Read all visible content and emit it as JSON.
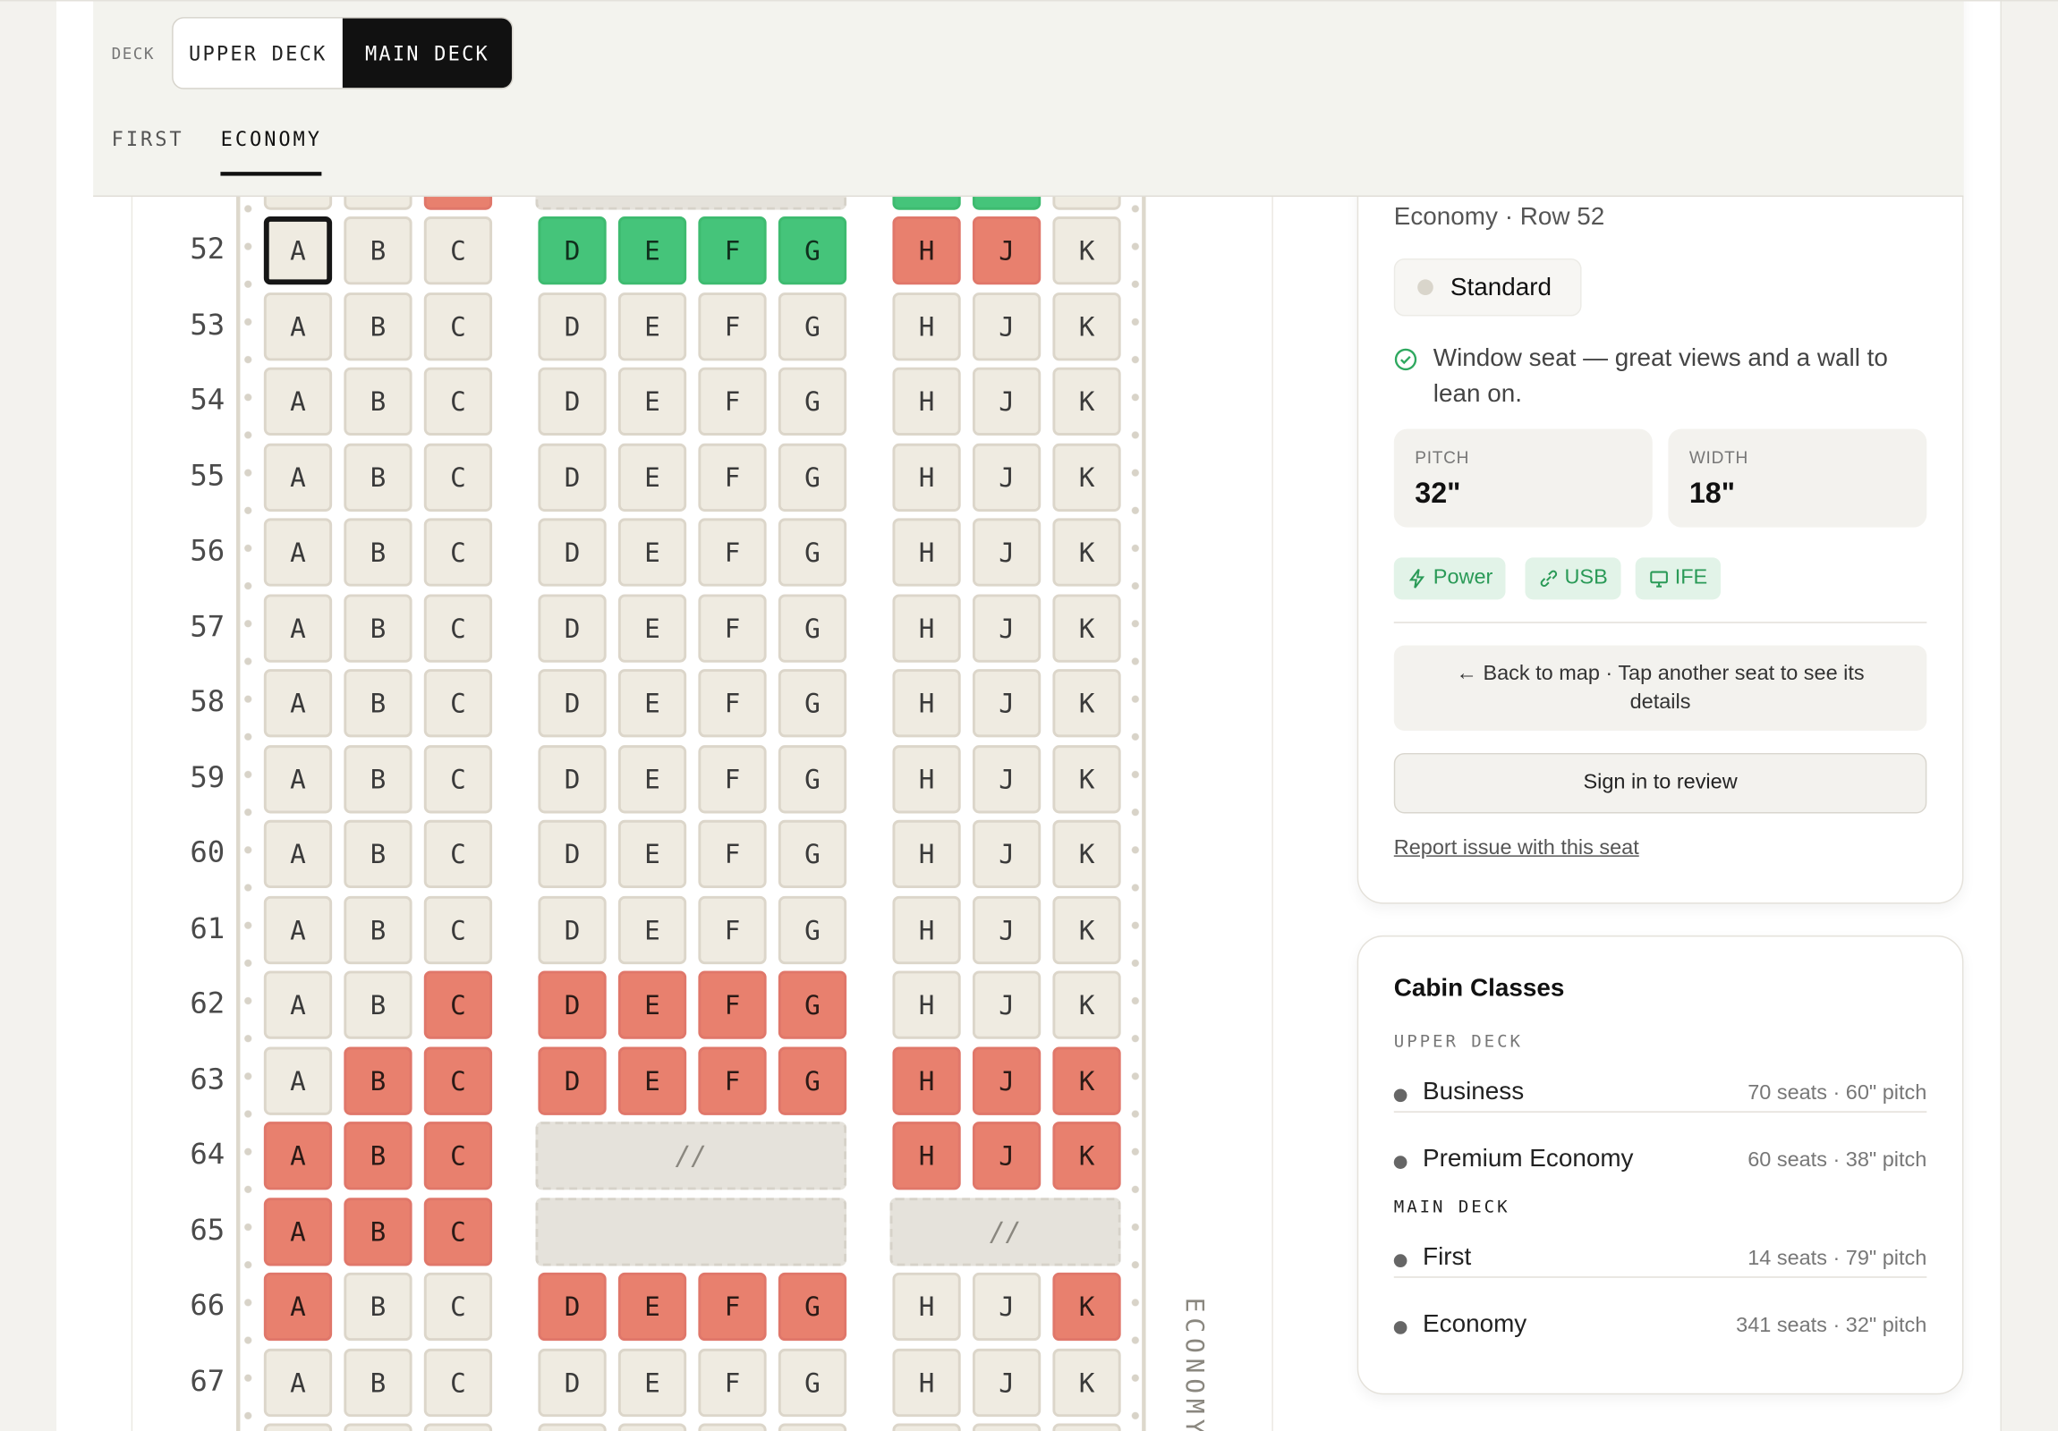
{
  "header": {
    "deck_label": "DECK",
    "deck_tabs": [
      {
        "label": "UPPER DECK",
        "selected": false
      },
      {
        "label": "MAIN DECK",
        "selected": true
      }
    ],
    "class_tabs": [
      {
        "label": "FIRST",
        "selected": false
      },
      {
        "label": "ECONOMY",
        "selected": true
      }
    ]
  },
  "seat_map": {
    "cabin_label": "ECONOMY",
    "rows": [
      {
        "row": null,
        "groups": [
          {
            "status": [
              "standard",
              "standard",
              "occupied"
            ]
          },
          {
            "blocked": true
          },
          {
            "status": [
              "featured",
              "featured",
              "standard"
            ]
          }
        ]
      },
      {
        "row": "52",
        "groups": [
          {
            "letters": [
              "A",
              "B",
              "C"
            ],
            "status": [
              "selected",
              "standard",
              "standard"
            ]
          },
          {
            "letters": [
              "D",
              "E",
              "F",
              "G"
            ],
            "status": [
              "featured",
              "featured",
              "featured",
              "featured"
            ]
          },
          {
            "letters": [
              "H",
              "J",
              "K"
            ],
            "status": [
              "occupied",
              "occupied",
              "standard"
            ]
          }
        ]
      },
      {
        "row": "53",
        "groups": [
          {
            "letters": [
              "A",
              "B",
              "C"
            ],
            "status": [
              "standard",
              "standard",
              "standard"
            ]
          },
          {
            "letters": [
              "D",
              "E",
              "F",
              "G"
            ],
            "status": [
              "standard",
              "standard",
              "standard",
              "standard"
            ]
          },
          {
            "letters": [
              "H",
              "J",
              "K"
            ],
            "status": [
              "standard",
              "standard",
              "standard"
            ]
          }
        ]
      },
      {
        "row": "54",
        "groups": [
          {
            "letters": [
              "A",
              "B",
              "C"
            ],
            "status": [
              "standard",
              "standard",
              "standard"
            ]
          },
          {
            "letters": [
              "D",
              "E",
              "F",
              "G"
            ],
            "status": [
              "standard",
              "standard",
              "standard",
              "standard"
            ]
          },
          {
            "letters": [
              "H",
              "J",
              "K"
            ],
            "status": [
              "standard",
              "standard",
              "standard"
            ]
          }
        ]
      },
      {
        "row": "55",
        "groups": [
          {
            "letters": [
              "A",
              "B",
              "C"
            ],
            "status": [
              "standard",
              "standard",
              "standard"
            ]
          },
          {
            "letters": [
              "D",
              "E",
              "F",
              "G"
            ],
            "status": [
              "standard",
              "standard",
              "standard",
              "standard"
            ]
          },
          {
            "letters": [
              "H",
              "J",
              "K"
            ],
            "status": [
              "standard",
              "standard",
              "standard"
            ]
          }
        ]
      },
      {
        "row": "56",
        "groups": [
          {
            "letters": [
              "A",
              "B",
              "C"
            ],
            "status": [
              "standard",
              "standard",
              "standard"
            ]
          },
          {
            "letters": [
              "D",
              "E",
              "F",
              "G"
            ],
            "status": [
              "standard",
              "standard",
              "standard",
              "standard"
            ]
          },
          {
            "letters": [
              "H",
              "J",
              "K"
            ],
            "status": [
              "standard",
              "standard",
              "standard"
            ]
          }
        ]
      },
      {
        "row": "57",
        "groups": [
          {
            "letters": [
              "A",
              "B",
              "C"
            ],
            "status": [
              "standard",
              "standard",
              "standard"
            ]
          },
          {
            "letters": [
              "D",
              "E",
              "F",
              "G"
            ],
            "status": [
              "standard",
              "standard",
              "standard",
              "standard"
            ]
          },
          {
            "letters": [
              "H",
              "J",
              "K"
            ],
            "status": [
              "standard",
              "standard",
              "standard"
            ]
          }
        ]
      },
      {
        "row": "58",
        "groups": [
          {
            "letters": [
              "A",
              "B",
              "C"
            ],
            "status": [
              "standard",
              "standard",
              "standard"
            ]
          },
          {
            "letters": [
              "D",
              "E",
              "F",
              "G"
            ],
            "status": [
              "standard",
              "standard",
              "standard",
              "standard"
            ]
          },
          {
            "letters": [
              "H",
              "J",
              "K"
            ],
            "status": [
              "standard",
              "standard",
              "standard"
            ]
          }
        ]
      },
      {
        "row": "59",
        "groups": [
          {
            "letters": [
              "A",
              "B",
              "C"
            ],
            "status": [
              "standard",
              "standard",
              "standard"
            ]
          },
          {
            "letters": [
              "D",
              "E",
              "F",
              "G"
            ],
            "status": [
              "standard",
              "standard",
              "standard",
              "standard"
            ]
          },
          {
            "letters": [
              "H",
              "J",
              "K"
            ],
            "status": [
              "standard",
              "standard",
              "standard"
            ]
          }
        ]
      },
      {
        "row": "60",
        "groups": [
          {
            "letters": [
              "A",
              "B",
              "C"
            ],
            "status": [
              "standard",
              "standard",
              "standard"
            ]
          },
          {
            "letters": [
              "D",
              "E",
              "F",
              "G"
            ],
            "status": [
              "standard",
              "standard",
              "standard",
              "standard"
            ]
          },
          {
            "letters": [
              "H",
              "J",
              "K"
            ],
            "status": [
              "standard",
              "standard",
              "standard"
            ]
          }
        ]
      },
      {
        "row": "61",
        "groups": [
          {
            "letters": [
              "A",
              "B",
              "C"
            ],
            "status": [
              "standard",
              "standard",
              "standard"
            ]
          },
          {
            "letters": [
              "D",
              "E",
              "F",
              "G"
            ],
            "status": [
              "standard",
              "standard",
              "standard",
              "standard"
            ]
          },
          {
            "letters": [
              "H",
              "J",
              "K"
            ],
            "status": [
              "standard",
              "standard",
              "standard"
            ]
          }
        ]
      },
      {
        "row": "62",
        "groups": [
          {
            "letters": [
              "A",
              "B",
              "C"
            ],
            "status": [
              "standard",
              "standard",
              "occupied"
            ]
          },
          {
            "letters": [
              "D",
              "E",
              "F",
              "G"
            ],
            "status": [
              "occupied",
              "occupied",
              "occupied",
              "occupied"
            ]
          },
          {
            "letters": [
              "H",
              "J",
              "K"
            ],
            "status": [
              "standard",
              "standard",
              "standard"
            ]
          }
        ]
      },
      {
        "row": "63",
        "groups": [
          {
            "letters": [
              "A",
              "B",
              "C"
            ],
            "status": [
              "standard",
              "occupied",
              "occupied"
            ]
          },
          {
            "letters": [
              "D",
              "E",
              "F",
              "G"
            ],
            "status": [
              "occupied",
              "occupied",
              "occupied",
              "occupied"
            ]
          },
          {
            "letters": [
              "H",
              "J",
              "K"
            ],
            "status": [
              "occupied",
              "occupied",
              "occupied"
            ]
          }
        ]
      },
      {
        "row": "64",
        "groups": [
          {
            "letters": [
              "A",
              "B",
              "C"
            ],
            "status": [
              "occupied",
              "occupied",
              "occupied"
            ]
          },
          {
            "blocked": true,
            "label": "//"
          },
          {
            "letters": [
              "H",
              "J",
              "K"
            ],
            "status": [
              "occupied",
              "occupied",
              "occupied"
            ]
          }
        ]
      },
      {
        "row": "65",
        "groups": [
          {
            "letters": [
              "A",
              "B",
              "C"
            ],
            "status": [
              "occupied",
              "occupied",
              "occupied"
            ]
          },
          {
            "blocked": true
          },
          {
            "blocked": true,
            "label": "//"
          }
        ]
      },
      {
        "row": "66",
        "groups": [
          {
            "letters": [
              "A",
              "B",
              "C"
            ],
            "status": [
              "occupied",
              "standard",
              "standard"
            ]
          },
          {
            "letters": [
              "D",
              "E",
              "F",
              "G"
            ],
            "status": [
              "occupied",
              "occupied",
              "occupied",
              "occupied"
            ]
          },
          {
            "letters": [
              "H",
              "J",
              "K"
            ],
            "status": [
              "standard",
              "standard",
              "occupied"
            ]
          }
        ]
      },
      {
        "row": "67",
        "groups": [
          {
            "letters": [
              "A",
              "B",
              "C"
            ],
            "status": [
              "standard",
              "standard",
              "standard"
            ]
          },
          {
            "letters": [
              "D",
              "E",
              "F",
              "G"
            ],
            "status": [
              "standard",
              "standard",
              "standard",
              "standard"
            ]
          },
          {
            "letters": [
              "H",
              "J",
              "K"
            ],
            "status": [
              "standard",
              "standard",
              "standard"
            ]
          }
        ]
      },
      {
        "row": null,
        "groups": [
          {
            "status": [
              "standard",
              "standard",
              "standard"
            ]
          },
          {
            "status": [
              "standard",
              "standard",
              "standard",
              "standard"
            ]
          },
          {
            "status": [
              "standard",
              "standard",
              "standard"
            ]
          }
        ]
      }
    ]
  },
  "seat_details": {
    "subtitle": "Economy · Row 52",
    "seat_type": "Standard",
    "note": "Window seat — great views and a wall to lean on.",
    "specs": [
      {
        "label": "PITCH",
        "value": "32\""
      },
      {
        "label": "WIDTH",
        "value": "18\""
      }
    ],
    "amenities": [
      "Power",
      "USB",
      "IFE"
    ],
    "back_button": "← Back to map · Tap another seat to see its details",
    "review_button": "Sign in to review",
    "report_link": "Report issue with this seat"
  },
  "cabin_classes": {
    "title": "Cabin Classes",
    "decks": [
      {
        "name": "UPPER DECK",
        "classes": [
          {
            "name": "Business",
            "info": "70 seats · 60\" pitch"
          },
          {
            "name": "Premium Economy",
            "info": "60 seats · 38\" pitch"
          }
        ]
      },
      {
        "name": "MAIN DECK",
        "classes": [
          {
            "name": "First",
            "info": "14 seats · 79\" pitch"
          },
          {
            "name": "Economy",
            "info": "341 seats · 32\" pitch"
          }
        ]
      }
    ]
  }
}
